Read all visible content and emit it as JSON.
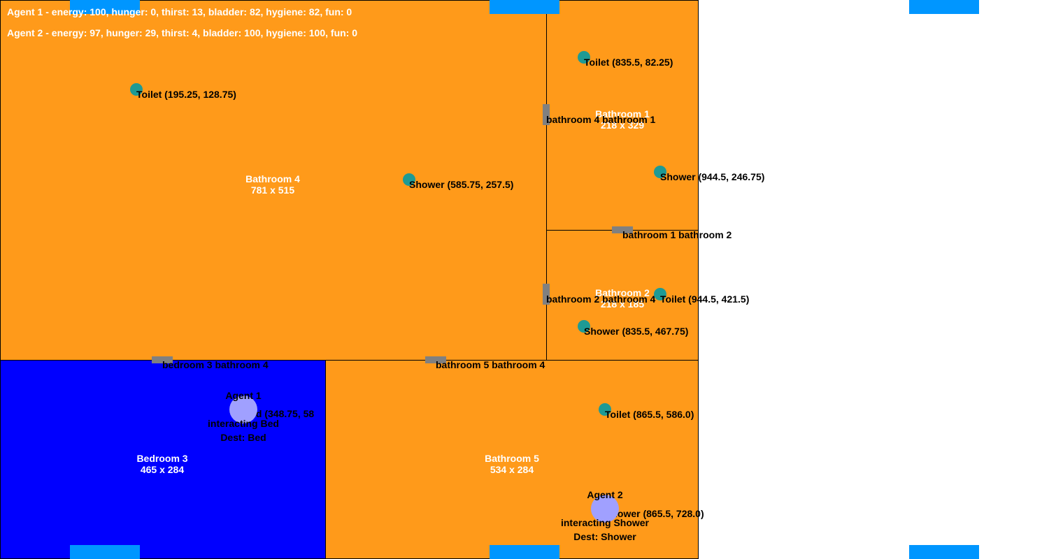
{
  "colors": {
    "bathroom": "#ff9a1a",
    "bedroom": "#0000ff",
    "window": "#0096ff",
    "door": "#808080",
    "item": "#1e9a94",
    "agent": "#a0a0ff"
  },
  "status_lines": [
    "Agent 1 - energy: 100, hunger: 0, thirst: 13, bladder: 82, hygiene: 82, fun: 0",
    "Agent 2 - energy: 97, hunger: 29, thirst: 4, bladder: 100, hygiene: 100, fun: 0"
  ],
  "rooms": {
    "bathroom4": {
      "name": "Bathroom 4",
      "size": "781 x 515"
    },
    "bathroom1": {
      "name": "Bathroom 1",
      "size": "218 x 329"
    },
    "bathroom2": {
      "name": "Bathroom 2",
      "size": "218 x 185"
    },
    "bedroom3": {
      "name": "Bedroom 3",
      "size": "465 x 284"
    },
    "bathroom5": {
      "name": "Bathroom 5",
      "size": "534 x 284"
    }
  },
  "doors": {
    "b4_b1": "bathroom 4 bathroom 1",
    "b1_b2": "bathroom 1 bathroom 2",
    "b2_b4": "bathroom 2 bathroom 4",
    "bed3_b4": "bedroom 3 bathroom 4",
    "b5_b4": "bathroom 5 bathroom 4"
  },
  "items": {
    "toilet_b4": "Toilet (195.25, 128.75)",
    "shower_b4": "Shower (585.75, 257.5)",
    "toilet_b1": "Toilet (835.5, 82.25)",
    "shower_b1": "Shower (944.5, 246.75)",
    "toilet_b2": "Toilet (944.5, 421.5)",
    "shower_b2": "Shower (835.5, 467.75)",
    "bed_bed3": "Bed (348.75, 58",
    "toilet_b5": "Toilet (865.5, 586.0)",
    "shower_b5": "Shower (865.5, 728.0)"
  },
  "agents": [
    {
      "name": "Agent 1",
      "action": "interacting Bed",
      "dest": "Dest: Bed"
    },
    {
      "name": "Agent 2",
      "action": "interacting Shower",
      "dest": "Dest: Shower"
    }
  ]
}
